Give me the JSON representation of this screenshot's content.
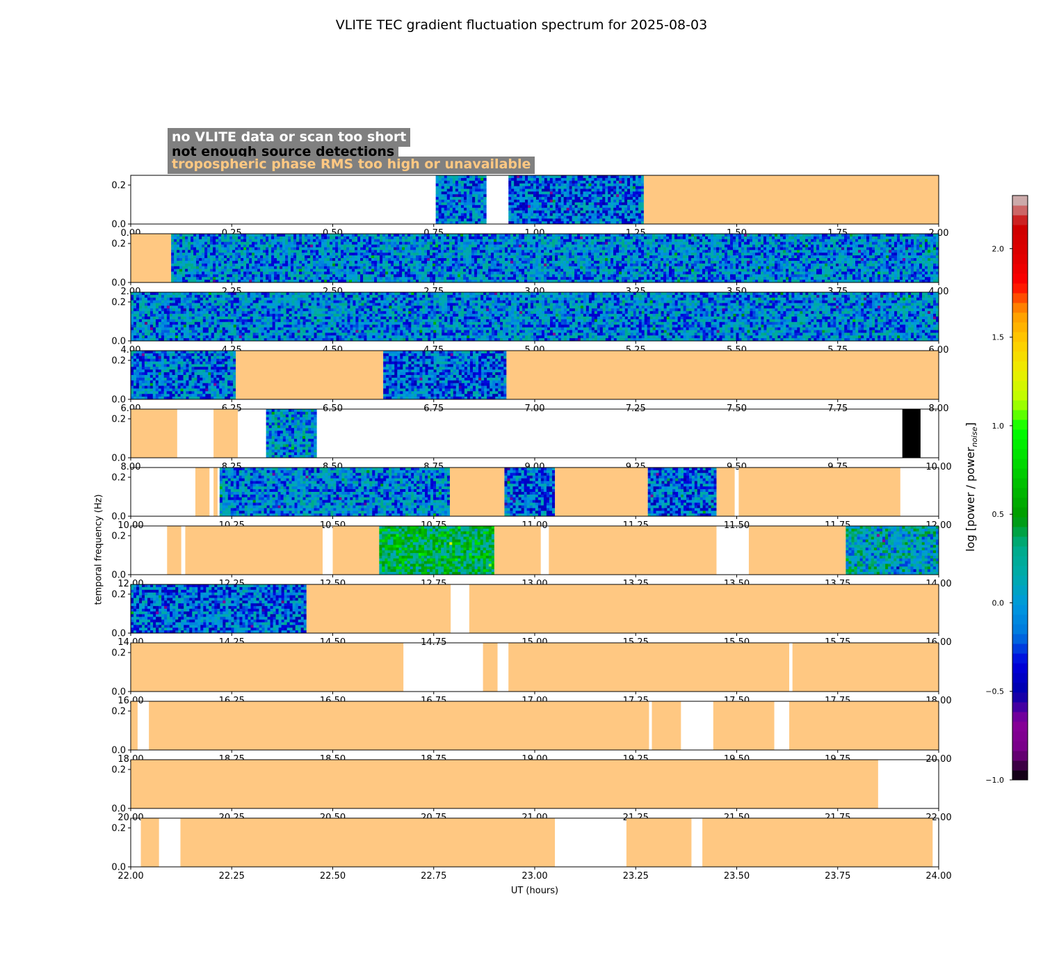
{
  "title": "VLITE TEC gradient fluctuation spectrum for 2025-08-03",
  "legend": [
    {
      "label": "no VLITE data or scan too short",
      "color": "#ffffff"
    },
    {
      "label": "not enough source detections",
      "color": "#000000"
    },
    {
      "label": "tropospheric phase RMS too high or unavailable",
      "color": "#ffc882"
    }
  ],
  "xlabel": "UT (hours)",
  "ylabel": "temporal frequency (Hz)",
  "colorbar": {
    "label_main": "log [power / power",
    "label_sub": "noise",
    "label_end": "]",
    "ticks": [
      -1.0,
      -0.5,
      0.0,
      0.5,
      1.0,
      1.5,
      2.0
    ],
    "tick_labels": [
      "−1.0",
      "−0.5",
      "0.0",
      "0.5",
      "1.0",
      "1.5",
      "2.0"
    ],
    "range": [
      -1.0,
      2.3
    ],
    "colormap": "nipy_spectral"
  },
  "colors": {
    "no_data": "#ffffff",
    "no_detections": "#000000",
    "trop_rms": "#ffc882"
  },
  "chart_data": {
    "type": "heatmap",
    "ylim": [
      0,
      0.25
    ],
    "yticks": [
      0.0,
      0.2
    ],
    "ytick_labels": [
      "0.0",
      "0.2"
    ],
    "xtick_step_hours": 0.25,
    "panels": [
      {
        "xlim": [
          0,
          2
        ],
        "segments": [
          {
            "start": 0.755,
            "end": 0.88,
            "kind": "spectrum",
            "level": -0.1
          },
          {
            "start": 0.935,
            "end": 1.27,
            "kind": "spectrum",
            "level": -0.15
          },
          {
            "start": 1.27,
            "end": 2.0,
            "kind": "trop"
          }
        ]
      },
      {
        "xlim": [
          2,
          4
        ],
        "segments": [
          {
            "start": 2.0,
            "end": 2.1,
            "kind": "trop"
          },
          {
            "start": 2.1,
            "end": 4.0,
            "kind": "spectrum",
            "level": -0.05
          }
        ]
      },
      {
        "xlim": [
          4,
          6
        ],
        "segments": [
          {
            "start": 4.0,
            "end": 6.0,
            "kind": "spectrum",
            "level": -0.05
          }
        ]
      },
      {
        "xlim": [
          6,
          8
        ],
        "segments": [
          {
            "start": 6.0,
            "end": 6.26,
            "kind": "spectrum",
            "level": -0.1
          },
          {
            "start": 6.26,
            "end": 6.625,
            "kind": "trop"
          },
          {
            "start": 6.625,
            "end": 6.93,
            "kind": "spectrum",
            "level": -0.15
          },
          {
            "start": 6.93,
            "end": 8.0,
            "kind": "trop"
          }
        ]
      },
      {
        "xlim": [
          8,
          10
        ],
        "segments": [
          {
            "start": 8.0,
            "end": 8.115,
            "kind": "trop"
          },
          {
            "start": 8.205,
            "end": 8.265,
            "kind": "trop"
          },
          {
            "start": 8.335,
            "end": 8.46,
            "kind": "spectrum",
            "level": 0.0
          },
          {
            "start": 9.91,
            "end": 9.955,
            "kind": "no_detections"
          }
        ]
      },
      {
        "xlim": [
          10,
          12
        ],
        "segments": [
          {
            "start": 10.16,
            "end": 10.195,
            "kind": "trop"
          },
          {
            "start": 10.205,
            "end": 10.215,
            "kind": "trop"
          },
          {
            "start": 10.22,
            "end": 10.79,
            "kind": "spectrum",
            "level": -0.05
          },
          {
            "start": 10.79,
            "end": 10.925,
            "kind": "trop"
          },
          {
            "start": 10.925,
            "end": 11.05,
            "kind": "spectrum",
            "level": -0.15
          },
          {
            "start": 11.05,
            "end": 11.28,
            "kind": "trop"
          },
          {
            "start": 11.28,
            "end": 11.45,
            "kind": "spectrum",
            "level": -0.15
          },
          {
            "start": 11.45,
            "end": 11.495,
            "kind": "trop"
          },
          {
            "start": 11.505,
            "end": 11.905,
            "kind": "trop"
          }
        ]
      },
      {
        "xlim": [
          12,
          14
        ],
        "segments": [
          {
            "start": 12.09,
            "end": 12.125,
            "kind": "trop"
          },
          {
            "start": 12.135,
            "end": 12.475,
            "kind": "trop"
          },
          {
            "start": 12.5,
            "end": 12.615,
            "kind": "trop"
          },
          {
            "start": 12.615,
            "end": 12.9,
            "kind": "spectrum",
            "level": 0.45
          },
          {
            "start": 12.9,
            "end": 13.015,
            "kind": "trop"
          },
          {
            "start": 13.035,
            "end": 13.45,
            "kind": "trop"
          },
          {
            "start": 13.53,
            "end": 13.77,
            "kind": "trop"
          },
          {
            "start": 13.77,
            "end": 14.0,
            "kind": "spectrum",
            "level": 0.1
          }
        ]
      },
      {
        "xlim": [
          14,
          16
        ],
        "segments": [
          {
            "start": 14.0,
            "end": 14.435,
            "kind": "spectrum",
            "level": -0.15
          },
          {
            "start": 14.435,
            "end": 14.792,
            "kind": "trop"
          },
          {
            "start": 14.838,
            "end": 16.0,
            "kind": "trop"
          }
        ]
      },
      {
        "xlim": [
          16,
          18
        ],
        "segments": [
          {
            "start": 16.0,
            "end": 16.675,
            "kind": "trop"
          },
          {
            "start": 16.872,
            "end": 16.908,
            "kind": "trop"
          },
          {
            "start": 16.935,
            "end": 17.63,
            "kind": "trop"
          },
          {
            "start": 17.638,
            "end": 18.0,
            "kind": "trop"
          }
        ]
      },
      {
        "xlim": [
          18,
          20
        ],
        "segments": [
          {
            "start": 18.0,
            "end": 18.017,
            "kind": "trop"
          },
          {
            "start": 18.045,
            "end": 19.283,
            "kind": "trop"
          },
          {
            "start": 19.29,
            "end": 19.362,
            "kind": "trop"
          },
          {
            "start": 19.442,
            "end": 19.593,
            "kind": "trop"
          },
          {
            "start": 19.63,
            "end": 20.0,
            "kind": "trop"
          }
        ]
      },
      {
        "xlim": [
          20,
          22
        ],
        "segments": [
          {
            "start": 20.0,
            "end": 21.85,
            "kind": "trop"
          }
        ]
      },
      {
        "xlim": [
          22,
          24
        ],
        "segments": [
          {
            "start": 22.025,
            "end": 22.07,
            "kind": "trop"
          },
          {
            "start": 22.123,
            "end": 23.05,
            "kind": "trop"
          },
          {
            "start": 23.227,
            "end": 23.388,
            "kind": "trop"
          },
          {
            "start": 23.415,
            "end": 23.985,
            "kind": "trop"
          }
        ]
      }
    ]
  }
}
